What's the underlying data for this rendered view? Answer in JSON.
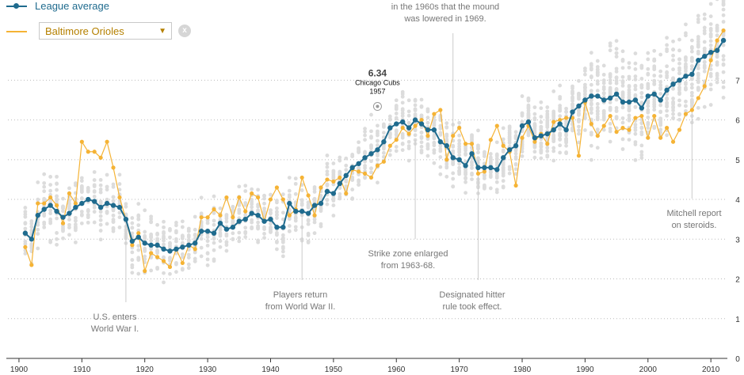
{
  "legend": {
    "league_label": "League average",
    "team_label": "Baltimore Orioles",
    "league_color": "#1f6b8e",
    "team_color": "#f5b335",
    "clear_symbol": "x"
  },
  "highlight": {
    "value": "6.34",
    "team": "Chicago Cubs",
    "year": "1957",
    "x": 1957,
    "y": 6.34
  },
  "annotations": [
    {
      "id": "mound",
      "lines": [
        "in the 1960s that the mound",
        "was lowered in 1969."
      ],
      "x": 1969,
      "y_end": 5.6
    },
    {
      "id": "wwi",
      "lines": [
        "U.S. enters",
        "World War I."
      ],
      "x": 1917,
      "y_end": 3.5
    },
    {
      "id": "wwii",
      "lines": [
        "Players return",
        "from World War II."
      ],
      "x": 1945,
      "y_end": 3.7
    },
    {
      "id": "strike",
      "lines": [
        "Strike zone enlarged",
        "from 1963-68."
      ],
      "x": 1963,
      "y_end": 5.5
    },
    {
      "id": "dh",
      "lines": [
        "Designated hitter",
        "rule took effect."
      ],
      "x": 1973,
      "y_end": 5.0
    },
    {
      "id": "mitchell",
      "lines": [
        "Mitchell report",
        "on steroids."
      ],
      "x": 2007,
      "y_end": 6.2
    }
  ],
  "chart_data": {
    "type": "scatter",
    "title": "",
    "xlabel": "",
    "ylabel": "",
    "xlim": [
      1899,
      2013
    ],
    "ylim": [
      0,
      8.5
    ],
    "x_ticks": [
      1900,
      1910,
      1920,
      1930,
      1940,
      1950,
      1960,
      1970,
      1980,
      1990,
      2000,
      2010
    ],
    "y_ticks": [
      0,
      1,
      2,
      3,
      4,
      5,
      6,
      7
    ],
    "grid": "horizontal dotted",
    "x": [
      1901,
      1902,
      1903,
      1904,
      1905,
      1906,
      1907,
      1908,
      1909,
      1910,
      1911,
      1912,
      1913,
      1914,
      1915,
      1916,
      1917,
      1918,
      1919,
      1920,
      1921,
      1922,
      1923,
      1924,
      1925,
      1926,
      1927,
      1928,
      1929,
      1930,
      1931,
      1932,
      1933,
      1934,
      1935,
      1936,
      1937,
      1938,
      1939,
      1940,
      1941,
      1942,
      1943,
      1944,
      1945,
      1946,
      1947,
      1948,
      1949,
      1950,
      1951,
      1952,
      1953,
      1954,
      1955,
      1956,
      1957,
      1958,
      1959,
      1960,
      1961,
      1962,
      1963,
      1964,
      1965,
      1966,
      1967,
      1968,
      1969,
      1970,
      1971,
      1972,
      1973,
      1974,
      1975,
      1976,
      1977,
      1978,
      1979,
      1980,
      1981,
      1982,
      1983,
      1984,
      1985,
      1986,
      1987,
      1988,
      1989,
      1990,
      1991,
      1992,
      1993,
      1994,
      1995,
      1996,
      1997,
      1998,
      1999,
      2000,
      2001,
      2002,
      2003,
      2004,
      2005,
      2006,
      2007,
      2008,
      2009,
      2010,
      2011,
      2012
    ],
    "series": [
      {
        "name": "League average",
        "values": [
          3.15,
          3.0,
          3.6,
          3.75,
          3.85,
          3.7,
          3.55,
          3.65,
          3.8,
          3.9,
          4.0,
          3.95,
          3.8,
          3.9,
          3.85,
          3.8,
          3.5,
          2.95,
          3.05,
          2.9,
          2.85,
          2.85,
          2.75,
          2.7,
          2.75,
          2.8,
          2.85,
          2.9,
          3.2,
          3.2,
          3.15,
          3.4,
          3.25,
          3.3,
          3.45,
          3.5,
          3.65,
          3.6,
          3.45,
          3.5,
          3.3,
          3.3,
          3.9,
          3.7,
          3.7,
          3.65,
          3.85,
          3.9,
          4.2,
          4.15,
          4.4,
          4.6,
          4.8,
          4.9,
          5.05,
          5.15,
          5.25,
          5.45,
          5.8,
          5.9,
          5.95,
          5.8,
          6.0,
          5.9,
          5.75,
          5.75,
          5.45,
          5.35,
          5.05,
          5.0,
          4.85,
          5.15,
          4.8,
          4.8,
          4.8,
          4.75,
          5.05,
          5.25,
          5.35,
          5.85,
          5.95,
          5.55,
          5.6,
          5.65,
          5.75,
          5.9,
          5.75,
          6.2,
          6.35,
          6.5,
          6.6,
          6.6,
          6.5,
          6.55,
          6.65,
          6.45,
          6.45,
          6.5,
          6.3,
          6.6,
          6.65,
          6.5,
          6.75,
          6.9,
          7.0,
          7.1,
          7.15,
          7.5,
          7.6,
          7.7,
          7.75,
          8.0
        ]
      },
      {
        "name": "Baltimore Orioles",
        "values": [
          2.8,
          2.35,
          3.9,
          3.9,
          4.05,
          3.85,
          3.4,
          4.15,
          3.9,
          5.45,
          5.2,
          5.2,
          5.05,
          5.45,
          4.8,
          4.05,
          3.5,
          2.85,
          3.15,
          2.2,
          2.65,
          2.55,
          2.45,
          2.3,
          2.75,
          2.4,
          2.85,
          2.75,
          3.55,
          3.55,
          3.75,
          3.6,
          4.05,
          3.55,
          4.05,
          3.7,
          4.15,
          4.05,
          3.45,
          4.0,
          4.3,
          4.0,
          3.6,
          3.75,
          4.55,
          4.1,
          3.6,
          4.3,
          4.5,
          4.45,
          4.55,
          4.15,
          4.75,
          4.7,
          4.65,
          4.55,
          4.85,
          4.95,
          5.35,
          5.5,
          5.8,
          5.65,
          5.85,
          6.0,
          5.6,
          6.15,
          6.25,
          5.0,
          5.6,
          5.8,
          5.4,
          5.4,
          4.65,
          4.7,
          5.5,
          5.85,
          5.35,
          5.2,
          4.35,
          5.55,
          5.85,
          5.45,
          5.65,
          5.4,
          5.95,
          6.0,
          6.05,
          6.05,
          5.1,
          6.45,
          5.9,
          5.6,
          5.85,
          6.1,
          5.7,
          5.8,
          5.75,
          6.05,
          6.1,
          5.55,
          6.1,
          5.55,
          5.8,
          5.45,
          5.75,
          6.15,
          6.25,
          6.55,
          6.85,
          7.5,
          8.0,
          8.25
        ]
      }
    ]
  }
}
